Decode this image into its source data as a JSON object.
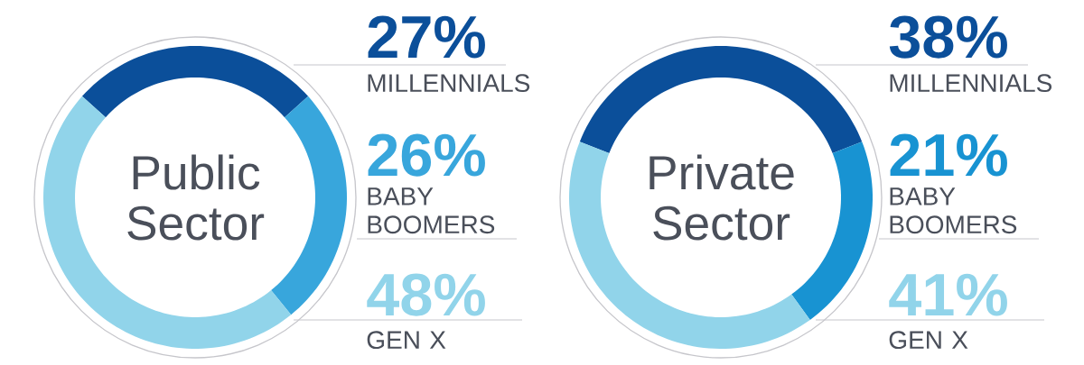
{
  "chart_data": [
    {
      "type": "donut",
      "title": "Public Sector",
      "categories": [
        "MILLENNIALS",
        "BABY BOOMERS",
        "GEN X"
      ],
      "values": [
        27,
        26,
        48
      ],
      "value_labels": [
        "27%",
        "26%",
        "48%"
      ],
      "colors": [
        "#0b4f9a",
        "#38a6dc",
        "#91d4ea"
      ]
    },
    {
      "type": "donut",
      "title": "Private Sector",
      "categories": [
        "MILLENNIALS",
        "BABY BOOMERS",
        "GEN X"
      ],
      "values": [
        38,
        21,
        41
      ],
      "value_labels": [
        "38%",
        "21%",
        "41%"
      ],
      "colors": [
        "#0b4f9a",
        "#1893d2",
        "#91d4ea"
      ]
    }
  ]
}
